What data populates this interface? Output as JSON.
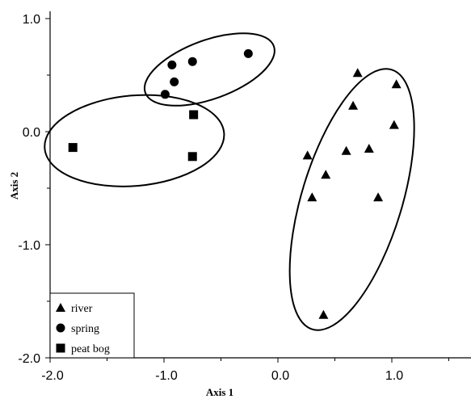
{
  "chart_data": {
    "type": "scatter",
    "xlabel": "Axis 1",
    "ylabel": "Axis 2",
    "xlim": [
      -2.0,
      1.6
    ],
    "ylim": [
      -2.0,
      1.05
    ],
    "x_ticks": [
      -2.0,
      -1.0,
      0.0,
      1.0
    ],
    "x_tick_labels": [
      "-2.0",
      "-1.0",
      "0.0",
      "1.0"
    ],
    "y_ticks": [
      1.0,
      0.0,
      -1.0,
      -2.0
    ],
    "y_tick_labels": [
      "1.0",
      "0.0",
      "-1.0",
      "-2.0"
    ],
    "grid": false,
    "legend_position": "bottom-left",
    "series": [
      {
        "name": "river",
        "marker": "triangle",
        "points": [
          [
            0.7,
            0.52
          ],
          [
            1.04,
            0.42
          ],
          [
            0.66,
            0.23
          ],
          [
            1.02,
            0.06
          ],
          [
            0.26,
            -0.21
          ],
          [
            0.6,
            -0.17
          ],
          [
            0.8,
            -0.15
          ],
          [
            0.42,
            -0.38
          ],
          [
            0.3,
            -0.58
          ],
          [
            0.88,
            -0.58
          ],
          [
            0.4,
            -1.62
          ]
        ]
      },
      {
        "name": "spring",
        "marker": "circle",
        "points": [
          [
            -0.93,
            0.59
          ],
          [
            -0.75,
            0.62
          ],
          [
            -0.26,
            0.69
          ],
          [
            -0.91,
            0.44
          ],
          [
            -0.99,
            0.33
          ]
        ]
      },
      {
        "name": "peat bog",
        "marker": "square",
        "points": [
          [
            -0.74,
            0.15
          ],
          [
            -1.8,
            -0.14
          ],
          [
            -0.75,
            -0.22
          ]
        ]
      }
    ]
  }
}
